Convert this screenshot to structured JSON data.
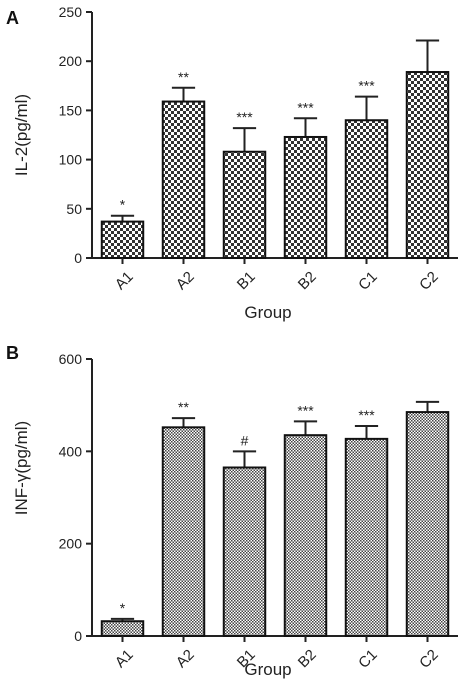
{
  "chart_data": [
    {
      "type": "bar",
      "panel": "A",
      "categories": [
        "A1",
        "A2",
        "B1",
        "B2",
        "C1",
        "C2"
      ],
      "values": [
        37,
        159,
        108,
        123,
        140,
        189
      ],
      "errors": [
        6,
        14,
        24,
        19,
        24,
        32
      ],
      "significance": [
        "*",
        "**",
        "***",
        "***",
        "***",
        ""
      ],
      "xlabel": "Group",
      "ylabel": "IL-2(pg/ml)",
      "ylim": [
        0,
        250
      ],
      "yticks": [
        0,
        50,
        100,
        150,
        200,
        250
      ],
      "fill": "checkerboard",
      "grid": false
    },
    {
      "type": "bar",
      "panel": "B",
      "categories": [
        "A1",
        "A2",
        "B1",
        "B2",
        "C1",
        "C2"
      ],
      "values": [
        32,
        452,
        365,
        435,
        427,
        485
      ],
      "errors": [
        5,
        20,
        35,
        30,
        28,
        22
      ],
      "significance": [
        "*",
        "**",
        "#",
        "***",
        "***",
        ""
      ],
      "xlabel": "Group",
      "ylabel": "INF-γ(pg/ml)",
      "ylim": [
        0,
        600
      ],
      "yticks": [
        0,
        200,
        400,
        600
      ],
      "fill": "fine-dot",
      "grid": false
    }
  ],
  "colors": {
    "axis": "#222222",
    "bar_dark": "#333333",
    "bar_light": "#ffffff"
  }
}
